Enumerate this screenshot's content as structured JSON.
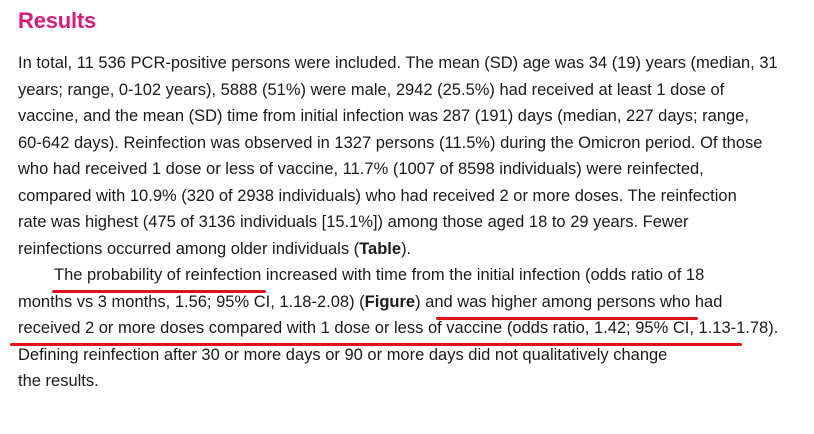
{
  "heading": "Results",
  "p1": [
    "In total, 11 536 PCR-positive persons were included. The mean (SD) age was 34 (19) years (median, 31",
    "years; range, 0-102 years), 5888 (51%) were male, 2942 (25.5%) had received at least 1 dose of",
    "vaccine, and the mean (SD) time from initial infection was 287 (191) days (median, 227 days; range,",
    "60-642 days). Reinfection was observed in 1327 persons (11.5%) during the Omicron period. Of those",
    "who had received 1 dose or less of vaccine, 11.7% (1007 of 8598 individuals) were reinfected,",
    "compared with 10.9% (320 of 2938 individuals) who had received 2 or more doses. The reinfection",
    "rate was highest (475 of 3136 individuals [15.1%]) among those aged 18 to 29 years. Fewer"
  ],
  "p1_last": {
    "before": "reinfections occurred among older individuals (",
    "bold": "Table",
    "after": ")."
  },
  "p2": {
    "l1_underlined": "The probability of reinfection",
    "l1_rest": " increased with time from the initial infection (odds ratio of 18",
    "l2_before": "months vs 3 months, 1.56; 95% CI, 1.18-2.08) (",
    "l2_bold": "Figure",
    "l2_mid": ") and ",
    "l2_underlined": "was higher among persons who had",
    "l3_underlined": "received 2 or more doses compared with 1 dose or less of vaccine (odds ratio, 1.42; 95% CI, 1.13-1.78).",
    "l4": "Defining reinfection after 30 or more days or 90 or more days did not qualitatively change",
    "l5": "the results."
  },
  "colors": {
    "heading": "#d81b7a",
    "text": "#1a1a1a",
    "underline": "#e0101c"
  }
}
